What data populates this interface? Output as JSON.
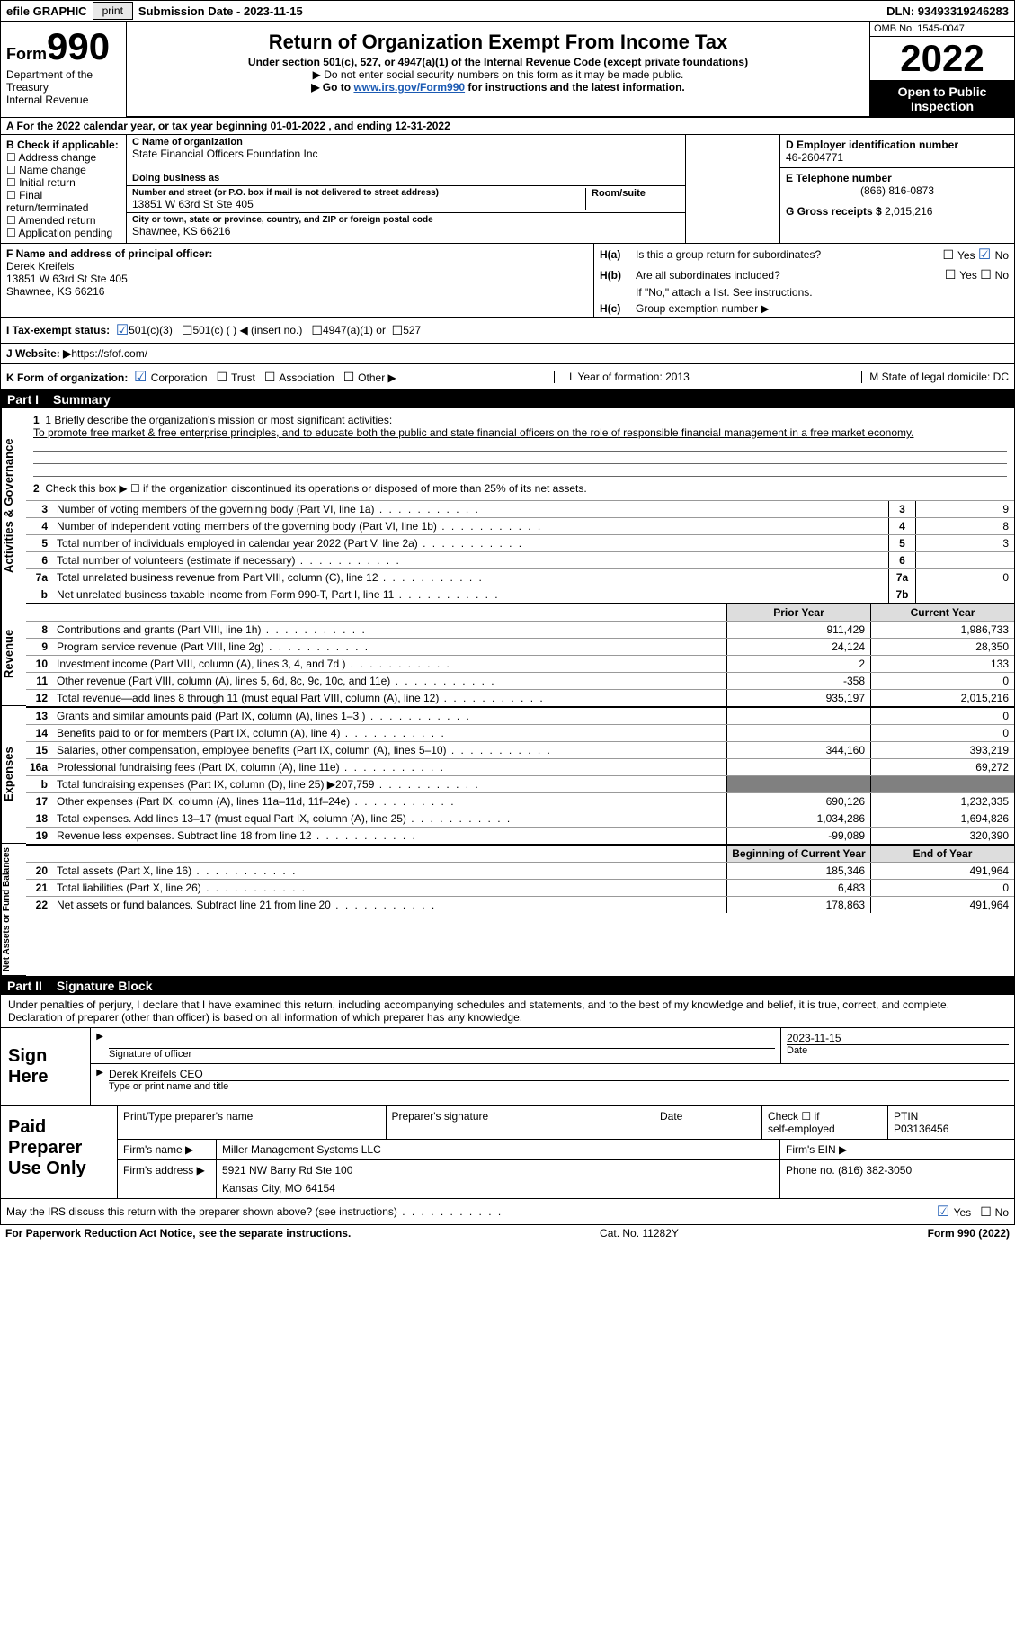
{
  "topbar": {
    "efile": "efile GRAPHIC",
    "print": "print",
    "sub_label": "Submission Date -",
    "sub_date": "2023-11-15",
    "dln_label": "DLN:",
    "dln": "93493319246283"
  },
  "header": {
    "form": "Form",
    "form_no": "990",
    "dept": "Department of the Treasury",
    "irs": "Internal Revenue Service",
    "title": "Return of Organization Exempt From Income Tax",
    "subtitle": "Under section 501(c), 527, or 4947(a)(1) of the Internal Revenue Code (except private foundations)",
    "note1": "▶ Do not enter social security numbers on this form as it may be made public.",
    "note2_a": "▶ Go to ",
    "note2_link": "www.irs.gov/Form990",
    "note2_b": " for instructions and the latest information.",
    "omb": "OMB No. 1545-0047",
    "year": "2022",
    "open": "Open to Public Inspection"
  },
  "row_a": "A For the 2022 calendar year, or tax year beginning 01-01-2022   , and ending 12-31-2022",
  "box_b": {
    "label": "B Check if applicable:",
    "opts": [
      "Address change",
      "Name change",
      "Initial return",
      "Final return/terminated",
      "Amended return",
      "Application pending"
    ]
  },
  "box_c": {
    "c_label": "C Name of organization",
    "name": "State Financial Officers Foundation Inc",
    "dba_label": "Doing business as",
    "dba": "",
    "addr_label": "Number and street (or P.O. box if mail is not delivered to street address)",
    "addr": "13851 W 63rd St Ste 405",
    "suite_label": "Room/suite",
    "city_label": "City or town, state or province, country, and ZIP or foreign postal code",
    "city": "Shawnee, KS  66216"
  },
  "box_d": {
    "d_label": "D Employer identification number",
    "ein": "46-2604771",
    "e_label": "E Telephone number",
    "phone": "(866) 816-0873",
    "g_label": "G Gross receipts $",
    "gross": "2,015,216"
  },
  "box_f": {
    "f_label": "F  Name and address of principal officer:",
    "name": "Derek Kreifels",
    "addr1": "13851 W 63rd St Ste 405",
    "addr2": "Shawnee, KS  66216"
  },
  "box_h": {
    "ha_label": "H(a)",
    "ha_q": "Is this a group return for subordinates?",
    "hb_label": "H(b)",
    "hb_q": "Are all subordinates included?",
    "hb_note": "If \"No,\" attach a list. See instructions.",
    "hc_label": "H(c)",
    "hc_q": "Group exemption number ▶"
  },
  "row_i": {
    "label": "I   Tax-exempt status:",
    "o1": "501(c)(3)",
    "o2": "501(c) (  ) ◀ (insert no.)",
    "o3": "4947(a)(1) or",
    "o4": "527"
  },
  "row_j": {
    "label": "J   Website: ▶ ",
    "url": "https://sfof.com/"
  },
  "row_k": {
    "k": "K Form of organization:",
    "corp": "Corporation",
    "trust": "Trust",
    "assoc": "Association",
    "other": "Other ▶",
    "l": "L Year of formation: 2013",
    "m": "M State of legal domicile: DC"
  },
  "part1": {
    "num": "Part I",
    "title": "Summary"
  },
  "summary": {
    "line1_a": "1   Briefly describe the organization's mission or most significant activities:",
    "line1_b": "To promote free market & free enterprise principles, and to educate both the public and state financial officers on the role of responsible financial management in a free market economy.",
    "line2": "Check this box ▶ ☐  if the organization discontinued its operations or disposed of more than 25% of its net assets.",
    "rows_ag": [
      {
        "n": "2",
        "d": ""
      },
      {
        "n": "3",
        "d": "Number of voting members of the governing body (Part VI, line 1a)",
        "box": "3",
        "v": "9"
      },
      {
        "n": "4",
        "d": "Number of independent voting members of the governing body (Part VI, line 1b)",
        "box": "4",
        "v": "8"
      },
      {
        "n": "5",
        "d": "Total number of individuals employed in calendar year 2022 (Part V, line 2a)",
        "box": "5",
        "v": "3"
      },
      {
        "n": "6",
        "d": "Total number of volunteers (estimate if necessary)",
        "box": "6",
        "v": ""
      },
      {
        "n": "7a",
        "d": "Total unrelated business revenue from Part VIII, column (C), line 12",
        "box": "7a",
        "v": "0"
      },
      {
        "n": "b",
        "d": "Net unrelated business taxable income from Form 990-T, Part I, line 11",
        "box": "7b",
        "v": ""
      }
    ],
    "col_headers": {
      "py": "Prior Year",
      "cy": "Current Year"
    },
    "rows_rev": [
      {
        "n": "8",
        "d": "Contributions and grants (Part VIII, line 1h)",
        "py": "911,429",
        "cy": "1,986,733"
      },
      {
        "n": "9",
        "d": "Program service revenue (Part VIII, line 2g)",
        "py": "24,124",
        "cy": "28,350"
      },
      {
        "n": "10",
        "d": "Investment income (Part VIII, column (A), lines 3, 4, and 7d )",
        "py": "2",
        "cy": "133"
      },
      {
        "n": "11",
        "d": "Other revenue (Part VIII, column (A), lines 5, 6d, 8c, 9c, 10c, and 11e)",
        "py": "-358",
        "cy": "0"
      },
      {
        "n": "12",
        "d": "Total revenue—add lines 8 through 11 (must equal Part VIII, column (A), line 12)",
        "py": "935,197",
        "cy": "2,015,216"
      }
    ],
    "rows_exp": [
      {
        "n": "13",
        "d": "Grants and similar amounts paid (Part IX, column (A), lines 1–3 )",
        "py": "",
        "cy": "0"
      },
      {
        "n": "14",
        "d": "Benefits paid to or for members (Part IX, column (A), line 4)",
        "py": "",
        "cy": "0"
      },
      {
        "n": "15",
        "d": "Salaries, other compensation, employee benefits (Part IX, column (A), lines 5–10)",
        "py": "344,160",
        "cy": "393,219"
      },
      {
        "n": "16a",
        "d": "Professional fundraising fees (Part IX, column (A), line 11e)",
        "py": "",
        "cy": "69,272"
      },
      {
        "n": "b",
        "d": "Total fundraising expenses (Part IX, column (D), line 25) ▶207,759",
        "py": "grey",
        "cy": "grey"
      },
      {
        "n": "17",
        "d": "Other expenses (Part IX, column (A), lines 11a–11d, 11f–24e)",
        "py": "690,126",
        "cy": "1,232,335"
      },
      {
        "n": "18",
        "d": "Total expenses. Add lines 13–17 (must equal Part IX, column (A), line 25)",
        "py": "1,034,286",
        "cy": "1,694,826"
      },
      {
        "n": "19",
        "d": "Revenue less expenses. Subtract line 18 from line 12",
        "py": "-99,089",
        "cy": "320,390"
      }
    ],
    "col_headers2": {
      "py": "Beginning of Current Year",
      "cy": "End of Year"
    },
    "rows_net": [
      {
        "n": "20",
        "d": "Total assets (Part X, line 16)",
        "py": "185,346",
        "cy": "491,964"
      },
      {
        "n": "21",
        "d": "Total liabilities (Part X, line 26)",
        "py": "6,483",
        "cy": "0"
      },
      {
        "n": "22",
        "d": "Net assets or fund balances. Subtract line 21 from line 20",
        "py": "178,863",
        "cy": "491,964"
      }
    ],
    "sides": {
      "ag": "Activities & Governance",
      "rev": "Revenue",
      "exp": "Expenses",
      "net": "Net Assets or Fund Balances"
    }
  },
  "part2": {
    "num": "Part II",
    "title": "Signature Block"
  },
  "sig": {
    "intro": "Under penalties of perjury, I declare that I have examined this return, including accompanying schedules and statements, and to the best of my knowledge and belief, it is true, correct, and complete. Declaration of preparer (other than officer) is based on all information of which preparer has any knowledge.",
    "sign_here": "Sign Here",
    "sig_officer": "Signature of officer",
    "date": "Date",
    "date_val": "2023-11-15",
    "name_title": "Derek Kreifels  CEO",
    "name_title_label": "Type or print name and title"
  },
  "prep": {
    "label": "Paid Preparer Use Only",
    "h1": "Print/Type preparer's name",
    "h2": "Preparer's signature",
    "h3": "Date",
    "h4a": "Check ☐ if",
    "h4b": "self-employed",
    "h5a": "PTIN",
    "h5b": "P03136456",
    "firm_name_l": "Firm's name     ▶",
    "firm_name": "Miller Management Systems LLC",
    "firm_ein_l": "Firm's EIN ▶",
    "firm_addr_l": "Firm's address ▶",
    "firm_addr1": "5921 NW Barry Rd Ste 100",
    "firm_addr2": "Kansas City, MO  64154",
    "phone_l": "Phone no.",
    "phone": "(816) 382-3050"
  },
  "discuss": {
    "q": "May the IRS discuss this return with the preparer shown above? (see instructions)",
    "yes": "Yes",
    "no": "No"
  },
  "footer": {
    "left": "For Paperwork Reduction Act Notice, see the separate instructions.",
    "mid": "Cat. No. 11282Y",
    "right": "Form 990 (2022)"
  }
}
